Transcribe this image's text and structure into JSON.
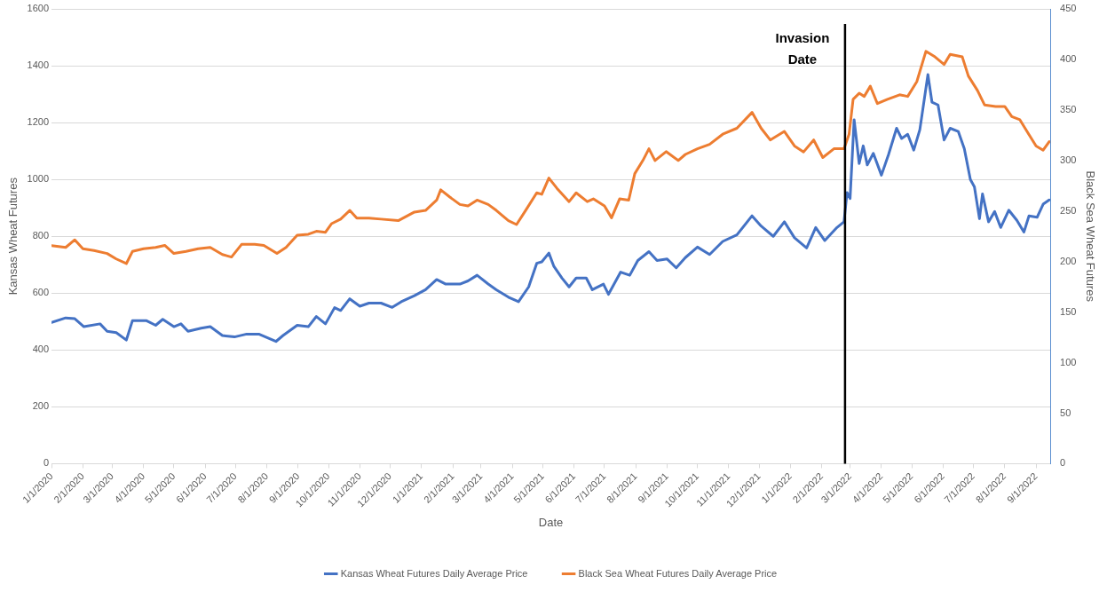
{
  "chart_data": {
    "type": "line",
    "xlabel": "Date",
    "ylabel": "Kansas Wheat Futures",
    "y2label": "Black Sea Wheat Futures",
    "xlim": [
      "2020-01-01",
      "2022-09-15"
    ],
    "xticks": [
      {
        "value": "2020-01-01",
        "label": "1/1/2020"
      },
      {
        "value": "2020-02-01",
        "label": "2/1/2020"
      },
      {
        "value": "2020-03-01",
        "label": "3/1/2020"
      },
      {
        "value": "2020-04-01",
        "label": "4/1/2020"
      },
      {
        "value": "2020-05-01",
        "label": "5/1/2020"
      },
      {
        "value": "2020-06-01",
        "label": "6/1/2020"
      },
      {
        "value": "2020-07-01",
        "label": "7/1/2020"
      },
      {
        "value": "2020-08-01",
        "label": "8/1/2020"
      },
      {
        "value": "2020-09-01",
        "label": "9/1/2020"
      },
      {
        "value": "2020-10-01",
        "label": "10/1/2020"
      },
      {
        "value": "2020-11-01",
        "label": "11/1/2020"
      },
      {
        "value": "2020-12-01",
        "label": "12/1/2020"
      },
      {
        "value": "2021-01-01",
        "label": "1/1/2021"
      },
      {
        "value": "2021-02-01",
        "label": "2/1/2021"
      },
      {
        "value": "2021-03-01",
        "label": "3/1/2021"
      },
      {
        "value": "2021-04-01",
        "label": "4/1/2021"
      },
      {
        "value": "2021-05-01",
        "label": "5/1/2021"
      },
      {
        "value": "2021-06-01",
        "label": "6/1/2021"
      },
      {
        "value": "2021-07-01",
        "label": "7/1/2021"
      },
      {
        "value": "2021-08-01",
        "label": "8/1/2021"
      },
      {
        "value": "2021-09-01",
        "label": "9/1/2021"
      },
      {
        "value": "2021-10-01",
        "label": "10/1/2021"
      },
      {
        "value": "2021-11-01",
        "label": "11/1/2021"
      },
      {
        "value": "2021-12-01",
        "label": "12/1/2021"
      },
      {
        "value": "2022-01-01",
        "label": "1/1/2022"
      },
      {
        "value": "2022-02-01",
        "label": "2/1/2022"
      },
      {
        "value": "2022-03-01",
        "label": "3/1/2022"
      },
      {
        "value": "2022-04-01",
        "label": "4/1/2022"
      },
      {
        "value": "2022-05-01",
        "label": "5/1/2022"
      },
      {
        "value": "2022-06-01",
        "label": "6/1/2022"
      },
      {
        "value": "2022-07-01",
        "label": "7/1/2022"
      },
      {
        "value": "2022-08-01",
        "label": "8/1/2022"
      },
      {
        "value": "2022-09-01",
        "label": "9/1/2022"
      }
    ],
    "ylim": [
      0,
      1600
    ],
    "yticks": [
      0,
      200,
      400,
      600,
      800,
      1000,
      1200,
      1400,
      1600
    ],
    "y2lim": [
      0,
      450
    ],
    "y2ticks": [
      0,
      50,
      100,
      150,
      200,
      250,
      300,
      350,
      400,
      450
    ],
    "grid": "y",
    "legend": "bottom",
    "marker": "none",
    "line_style": "solid",
    "ref_lines": [
      {
        "axis": "x",
        "value": "2022-02-24",
        "label": "Invasion Date",
        "color": "#000000"
      }
    ],
    "series": [
      {
        "name": "Kansas Wheat Futures Daily Average Price",
        "color": "#4472c4",
        "x": [
          "2020-01-01",
          "2020-01-15",
          "2020-01-24",
          "2020-02-02",
          "2020-02-18",
          "2020-02-25",
          "2020-03-05",
          "2020-03-15",
          "2020-03-21",
          "2020-04-04",
          "2020-04-13",
          "2020-04-20",
          "2020-05-01",
          "2020-05-08",
          "2020-05-15",
          "2020-05-28",
          "2020-06-06",
          "2020-06-18",
          "2020-06-30",
          "2020-07-12",
          "2020-07-24",
          "2020-08-10",
          "2020-08-17",
          "2020-08-31",
          "2020-09-11",
          "2020-09-19",
          "2020-09-28",
          "2020-10-07",
          "2020-10-13",
          "2020-10-22",
          "2020-11-01",
          "2020-11-10",
          "2020-11-22",
          "2020-12-03",
          "2020-12-12",
          "2020-12-25",
          "2021-01-05",
          "2021-01-16",
          "2021-01-25",
          "2021-02-08",
          "2021-02-16",
          "2021-02-25",
          "2021-03-08",
          "2021-03-16",
          "2021-03-28",
          "2021-04-07",
          "2021-04-17",
          "2021-04-25",
          "2021-04-30",
          "2021-05-07",
          "2021-05-12",
          "2021-05-20",
          "2021-05-27",
          "2021-06-03",
          "2021-06-13",
          "2021-06-19",
          "2021-06-30",
          "2021-07-05",
          "2021-07-17",
          "2021-07-26",
          "2021-08-03",
          "2021-08-14",
          "2021-08-22",
          "2021-09-01",
          "2021-09-10",
          "2021-09-19",
          "2021-10-01",
          "2021-10-13",
          "2021-10-26",
          "2021-11-09",
          "2021-11-24",
          "2021-12-03",
          "2021-12-15",
          "2021-12-26",
          "2022-01-05",
          "2022-01-17",
          "2022-01-26",
          "2022-02-04",
          "2022-02-16",
          "2022-02-23",
          "2022-02-26",
          "2022-03-01",
          "2022-03-05",
          "2022-03-10",
          "2022-03-14",
          "2022-03-18",
          "2022-03-24",
          "2022-04-01",
          "2022-04-08",
          "2022-04-16",
          "2022-04-21",
          "2022-04-27",
          "2022-05-03",
          "2022-05-09",
          "2022-05-17",
          "2022-05-21",
          "2022-05-27",
          "2022-06-02",
          "2022-06-08",
          "2022-06-16",
          "2022-06-22",
          "2022-06-28",
          "2022-07-02",
          "2022-07-07",
          "2022-07-10",
          "2022-07-16",
          "2022-07-22",
          "2022-07-28",
          "2022-08-05",
          "2022-08-13",
          "2022-08-20",
          "2022-08-25",
          "2022-09-02",
          "2022-09-08",
          "2022-09-14"
        ],
        "values": [
          497,
          513,
          510,
          482,
          492,
          466,
          461,
          435,
          503,
          503,
          487,
          508,
          482,
          492,
          466,
          477,
          482,
          451,
          446,
          456,
          456,
          430,
          451,
          487,
          482,
          518,
          492,
          549,
          539,
          580,
          554,
          565,
          565,
          550,
          570,
          591,
          612,
          648,
          632,
          632,
          643,
          663,
          632,
          612,
          586,
          570,
          622,
          705,
          710,
          741,
          694,
          653,
          622,
          653,
          653,
          612,
          632,
          596,
          674,
          663,
          715,
          746,
          715,
          720,
          689,
          725,
          762,
          736,
          782,
          805,
          872,
          836,
          800,
          851,
          795,
          759,
          831,
          785,
          831,
          851,
          954,
          933,
          1210,
          1056,
          1118,
          1051,
          1092,
          1015,
          1087,
          1180,
          1144,
          1159,
          1103,
          1175,
          1369,
          1272,
          1262,
          1139,
          1180,
          1169,
          1108,
          1000,
          974,
          862,
          949,
          851,
          887,
          831,
          892,
          856,
          815,
          872,
          867,
          913,
          928
        ]
      },
      {
        "name": "Black Sea Wheat Futures Daily Average Price",
        "color": "#ed7d31",
        "axis": "y2",
        "x": [
          "2020-01-01",
          "2020-01-15",
          "2020-01-24",
          "2020-02-01",
          "2020-02-12",
          "2020-02-25",
          "2020-03-05",
          "2020-03-15",
          "2020-03-21",
          "2020-04-01",
          "2020-04-13",
          "2020-04-22",
          "2020-05-01",
          "2020-05-13",
          "2020-05-25",
          "2020-06-06",
          "2020-06-18",
          "2020-06-27",
          "2020-07-07",
          "2020-07-20",
          "2020-07-29",
          "2020-08-11",
          "2020-08-20",
          "2020-08-31",
          "2020-09-11",
          "2020-09-19",
          "2020-09-28",
          "2020-10-04",
          "2020-10-13",
          "2020-10-22",
          "2020-10-29",
          "2020-11-10",
          "2020-11-22",
          "2020-12-09",
          "2020-12-25",
          "2021-01-05",
          "2021-01-16",
          "2021-01-20",
          "2021-01-29",
          "2021-02-08",
          "2021-02-16",
          "2021-02-25",
          "2021-03-08",
          "2021-03-16",
          "2021-03-28",
          "2021-04-05",
          "2021-04-14",
          "2021-04-25",
          "2021-04-30",
          "2021-05-07",
          "2021-05-15",
          "2021-05-27",
          "2021-06-03",
          "2021-06-14",
          "2021-06-20",
          "2021-07-01",
          "2021-07-08",
          "2021-07-16",
          "2021-07-25",
          "2021-07-31",
          "2021-08-08",
          "2021-08-14",
          "2021-08-20",
          "2021-08-31",
          "2021-09-12",
          "2021-09-19",
          "2021-10-01",
          "2021-10-13",
          "2021-10-26",
          "2021-11-09",
          "2021-11-24",
          "2021-12-03",
          "2021-12-12",
          "2021-12-26",
          "2022-01-05",
          "2022-01-14",
          "2022-01-24",
          "2022-02-02",
          "2022-02-13",
          "2022-02-23",
          "2022-02-28",
          "2022-03-04",
          "2022-03-10",
          "2022-03-15",
          "2022-03-21",
          "2022-03-28",
          "2022-04-07",
          "2022-04-19",
          "2022-04-27",
          "2022-05-06",
          "2022-05-15",
          "2022-05-24",
          "2022-06-02",
          "2022-06-08",
          "2022-06-20",
          "2022-06-26",
          "2022-07-05",
          "2022-07-12",
          "2022-07-23",
          "2022-08-01",
          "2022-08-08",
          "2022-08-16",
          "2022-08-23",
          "2022-09-01",
          "2022-09-08",
          "2022-09-14"
        ],
        "values": [
          215.7,
          214,
          221.5,
          212.7,
          211,
          208,
          202.6,
          198,
          210,
          212.7,
          214,
          216,
          208,
          210,
          212.7,
          214,
          207,
          204.5,
          217,
          217,
          216,
          208,
          214,
          226,
          227,
          230,
          229,
          237.5,
          242,
          250.6,
          243,
          243,
          242,
          240.5,
          249,
          250.6,
          260.8,
          271,
          263.8,
          256.5,
          255,
          260.8,
          256.5,
          250.6,
          240.5,
          236.6,
          250.6,
          268,
          266.6,
          282.6,
          272.5,
          259.3,
          268,
          259.3,
          262,
          255,
          243.3,
          262,
          260.8,
          287,
          300,
          311.6,
          300,
          308.8,
          300,
          306,
          311.6,
          316,
          326,
          331.9,
          347.6,
          331.9,
          320.3,
          328.8,
          314.4,
          308.5,
          320.3,
          302.9,
          311.6,
          311.6,
          326,
          360.6,
          366.5,
          363.4,
          373.5,
          356.3,
          360.6,
          365,
          363.4,
          378,
          408,
          402.5,
          395,
          405,
          402.5,
          383.6,
          369.3,
          355,
          353.5,
          353.5,
          343.4,
          340.3,
          328.8,
          314.4,
          310.2,
          318.7
        ]
      }
    ]
  }
}
